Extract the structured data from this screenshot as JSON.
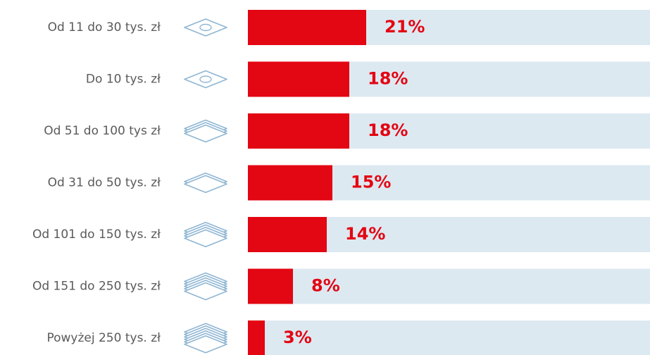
{
  "chart_data": {
    "type": "bar",
    "orientation": "horizontal",
    "categories": [
      "Od 11 do 30 tys. zł",
      "Do 10 tys. zł",
      "Od 51 do 100 tys zł",
      "Od 31 do 50 tys. zł",
      "Od 101 do 150 tys. zł",
      "Od 151 do 250 tys. zł",
      "Powyżej 250 tys. zł"
    ],
    "values": [
      21,
      18,
      18,
      15,
      14,
      8,
      3
    ],
    "value_labels": [
      "21%",
      "18%",
      "18%",
      "15%",
      "14%",
      "8%",
      "3%"
    ],
    "color": "#e30613",
    "track_color": "#dde9f1"
  }
}
